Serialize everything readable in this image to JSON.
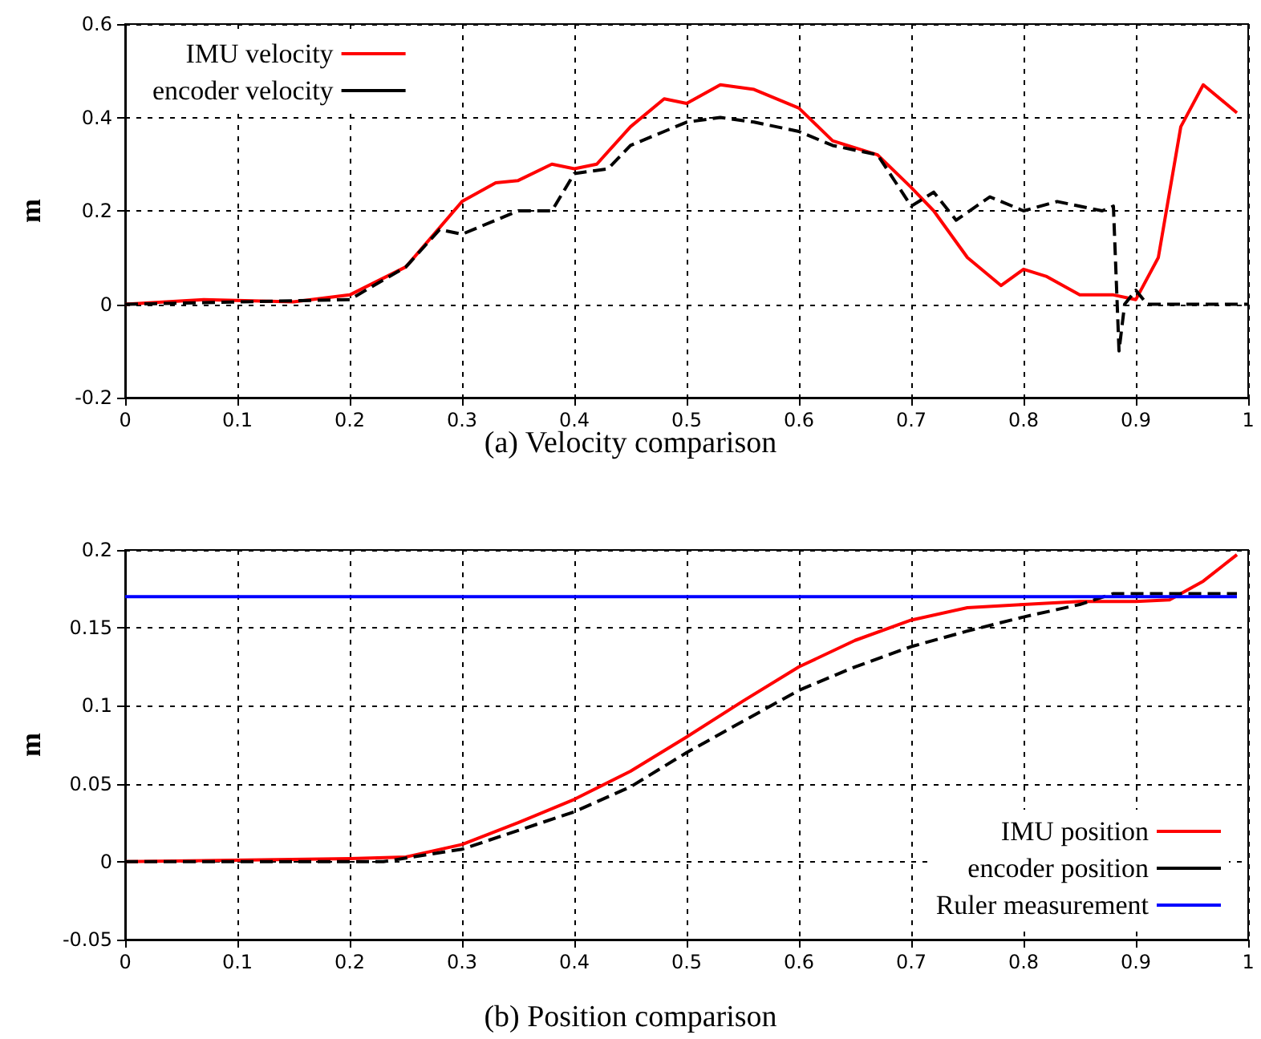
{
  "chart_data": [
    {
      "type": "line",
      "title": "(a) Velocity comparison",
      "ylabel": "m",
      "xlim": [
        0,
        1
      ],
      "xticks": [
        0,
        0.1,
        0.2,
        0.3,
        0.4,
        0.5,
        0.6,
        0.7,
        0.8,
        0.9,
        1
      ],
      "ylim": [
        -0.2,
        0.6
      ],
      "yticks": [
        -0.2,
        0,
        0.2,
        0.4,
        0.6
      ],
      "grid": true,
      "legend": "top left",
      "marker": "none",
      "series": [
        {
          "name": "IMU velocity",
          "color": "#ff0000",
          "line_style": "solid",
          "x": [
            0,
            0.07,
            0.15,
            0.2,
            0.25,
            0.3,
            0.33,
            0.35,
            0.38,
            0.4,
            0.42,
            0.45,
            0.48,
            0.5,
            0.53,
            0.56,
            0.6,
            0.63,
            0.67,
            0.7,
            0.72,
            0.75,
            0.78,
            0.8,
            0.82,
            0.85,
            0.88,
            0.9,
            0.92,
            0.94,
            0.96,
            0.98,
            0.99
          ],
          "values": [
            0,
            0.01,
            0.005,
            0.02,
            0.08,
            0.22,
            0.26,
            0.265,
            0.3,
            0.29,
            0.3,
            0.38,
            0.44,
            0.43,
            0.47,
            0.46,
            0.42,
            0.35,
            0.32,
            0.25,
            0.2,
            0.1,
            0.04,
            0.075,
            0.06,
            0.02,
            0.02,
            0.01,
            0.1,
            0.38,
            0.47,
            0.43,
            0.41
          ]
        },
        {
          "name": "encoder velocity",
          "color": "#000000",
          "line_style": "dashed",
          "x": [
            0,
            0.2,
            0.25,
            0.28,
            0.3,
            0.35,
            0.38,
            0.4,
            0.43,
            0.45,
            0.48,
            0.5,
            0.53,
            0.56,
            0.6,
            0.63,
            0.67,
            0.7,
            0.72,
            0.74,
            0.77,
            0.8,
            0.83,
            0.87,
            0.88,
            0.885,
            0.89,
            0.9,
            0.91,
            1
          ],
          "values": [
            0,
            0.01,
            0.08,
            0.16,
            0.15,
            0.2,
            0.2,
            0.28,
            0.29,
            0.34,
            0.37,
            0.39,
            0.4,
            0.39,
            0.37,
            0.34,
            0.32,
            0.21,
            0.24,
            0.18,
            0.23,
            0.2,
            0.22,
            0.2,
            0.21,
            -0.1,
            0,
            0.03,
            0,
            0
          ]
        }
      ]
    },
    {
      "type": "line",
      "title": "(b) Position comparison",
      "ylabel": "m",
      "xlim": [
        0,
        1
      ],
      "xticks": [
        0,
        0.1,
        0.2,
        0.3,
        0.4,
        0.5,
        0.6,
        0.7,
        0.8,
        0.9,
        1
      ],
      "ylim": [
        -0.05,
        0.2
      ],
      "yticks": [
        -0.05,
        0,
        0.05,
        0.1,
        0.15,
        0.2
      ],
      "grid": true,
      "legend": "bottom right",
      "marker": "none",
      "series": [
        {
          "name": "IMU position",
          "color": "#ff0000",
          "line_style": "solid",
          "x": [
            0,
            0.2,
            0.25,
            0.3,
            0.35,
            0.4,
            0.45,
            0.5,
            0.55,
            0.6,
            0.65,
            0.7,
            0.75,
            0.8,
            0.85,
            0.9,
            0.93,
            0.96,
            0.99
          ],
          "values": [
            0,
            0.002,
            0.003,
            0.011,
            0.025,
            0.04,
            0.058,
            0.08,
            0.103,
            0.125,
            0.142,
            0.155,
            0.163,
            0.165,
            0.167,
            0.167,
            0.168,
            0.18,
            0.197
          ]
        },
        {
          "name": "encoder position",
          "color": "#000000",
          "line_style": "dashed",
          "x": [
            0,
            0.23,
            0.3,
            0.35,
            0.4,
            0.45,
            0.5,
            0.55,
            0.6,
            0.65,
            0.7,
            0.75,
            0.8,
            0.85,
            0.88,
            0.99
          ],
          "values": [
            0,
            0,
            0.008,
            0.02,
            0.032,
            0.048,
            0.07,
            0.09,
            0.11,
            0.125,
            0.138,
            0.148,
            0.157,
            0.165,
            0.172,
            0.172
          ]
        },
        {
          "name": "Ruler measurement",
          "color": "#0000ff",
          "line_style": "solid",
          "x": [
            0,
            0.99
          ],
          "values": [
            0.17,
            0.17
          ]
        }
      ]
    }
  ]
}
